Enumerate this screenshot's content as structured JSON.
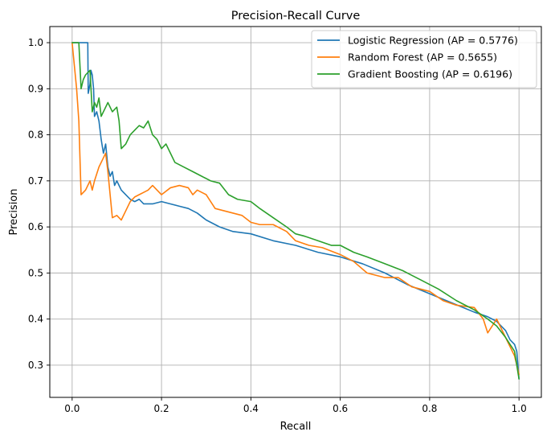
{
  "chart_data": {
    "type": "line",
    "title": "Precision-Recall Curve",
    "xlabel": "Recall",
    "ylabel": "Precision",
    "xlim": [
      -0.05,
      1.05
    ],
    "ylim": [
      0.23,
      1.035
    ],
    "xticks": [
      0.0,
      0.2,
      0.4,
      0.6,
      0.8,
      1.0
    ],
    "xtick_labels": [
      "0.0",
      "0.2",
      "0.4",
      "0.6",
      "0.8",
      "1.0"
    ],
    "yticks": [
      0.3,
      0.4,
      0.5,
      0.6,
      0.7,
      0.8,
      0.9,
      1.0
    ],
    "ytick_labels": [
      "0.3",
      "0.4",
      "0.5",
      "0.6",
      "0.7",
      "0.8",
      "0.9",
      "1.0"
    ],
    "grid": true,
    "legend_position": "top-right",
    "series": [
      {
        "name": "Logistic Regression (AP = 0.5776)",
        "color": "#1f77b4",
        "x": [
          0.0,
          0.02,
          0.035,
          0.036,
          0.04,
          0.042,
          0.045,
          0.048,
          0.05,
          0.055,
          0.06,
          0.065,
          0.07,
          0.075,
          0.08,
          0.085,
          0.09,
          0.095,
          0.1,
          0.11,
          0.12,
          0.13,
          0.14,
          0.15,
          0.16,
          0.18,
          0.2,
          0.22,
          0.24,
          0.26,
          0.28,
          0.3,
          0.33,
          0.36,
          0.4,
          0.45,
          0.5,
          0.55,
          0.6,
          0.65,
          0.7,
          0.75,
          0.8,
          0.85,
          0.9,
          0.93,
          0.95,
          0.97,
          0.98,
          0.99,
          0.995,
          1.0
        ],
        "y": [
          1.0,
          1.0,
          1.0,
          0.89,
          0.91,
          0.94,
          0.93,
          0.9,
          0.84,
          0.85,
          0.83,
          0.79,
          0.76,
          0.78,
          0.73,
          0.71,
          0.72,
          0.69,
          0.7,
          0.68,
          0.67,
          0.66,
          0.655,
          0.66,
          0.65,
          0.65,
          0.655,
          0.65,
          0.645,
          0.64,
          0.63,
          0.615,
          0.6,
          0.59,
          0.585,
          0.57,
          0.56,
          0.545,
          0.535,
          0.52,
          0.5,
          0.475,
          0.455,
          0.435,
          0.415,
          0.405,
          0.395,
          0.375,
          0.355,
          0.345,
          0.33,
          0.27
        ]
      },
      {
        "name": "Random Forest (AP = 0.5655)",
        "color": "#ff7f0e",
        "x": [
          0.0,
          0.005,
          0.01,
          0.015,
          0.02,
          0.03,
          0.04,
          0.045,
          0.05,
          0.06,
          0.07,
          0.075,
          0.08,
          0.09,
          0.1,
          0.11,
          0.12,
          0.13,
          0.14,
          0.15,
          0.16,
          0.17,
          0.18,
          0.2,
          0.22,
          0.24,
          0.26,
          0.27,
          0.28,
          0.3,
          0.32,
          0.34,
          0.36,
          0.38,
          0.4,
          0.42,
          0.45,
          0.48,
          0.5,
          0.53,
          0.56,
          0.6,
          0.63,
          0.66,
          0.7,
          0.73,
          0.76,
          0.8,
          0.83,
          0.86,
          0.9,
          0.92,
          0.93,
          0.95,
          0.96,
          0.98,
          0.99,
          1.0
        ],
        "y": [
          1.0,
          0.95,
          0.9,
          0.83,
          0.67,
          0.68,
          0.7,
          0.68,
          0.7,
          0.73,
          0.75,
          0.76,
          0.72,
          0.62,
          0.625,
          0.615,
          0.635,
          0.655,
          0.665,
          0.67,
          0.675,
          0.68,
          0.69,
          0.67,
          0.685,
          0.69,
          0.685,
          0.67,
          0.68,
          0.67,
          0.64,
          0.635,
          0.63,
          0.625,
          0.61,
          0.605,
          0.605,
          0.59,
          0.57,
          0.56,
          0.555,
          0.54,
          0.525,
          0.5,
          0.49,
          0.49,
          0.47,
          0.46,
          0.44,
          0.43,
          0.425,
          0.4,
          0.37,
          0.4,
          0.38,
          0.34,
          0.32,
          0.28
        ]
      },
      {
        "name": "Gradient Boosting (AP = 0.6196)",
        "color": "#2ca02c",
        "x": [
          0.0,
          0.015,
          0.02,
          0.025,
          0.03,
          0.04,
          0.045,
          0.05,
          0.055,
          0.06,
          0.065,
          0.07,
          0.08,
          0.09,
          0.1,
          0.105,
          0.11,
          0.12,
          0.13,
          0.14,
          0.15,
          0.16,
          0.17,
          0.18,
          0.19,
          0.2,
          0.21,
          0.22,
          0.23,
          0.25,
          0.27,
          0.29,
          0.31,
          0.33,
          0.35,
          0.37,
          0.4,
          0.42,
          0.45,
          0.48,
          0.5,
          0.52,
          0.55,
          0.58,
          0.6,
          0.63,
          0.66,
          0.7,
          0.74,
          0.78,
          0.82,
          0.86,
          0.9,
          0.93,
          0.95,
          0.97,
          0.98,
          0.99,
          1.0
        ],
        "y": [
          1.0,
          1.0,
          0.9,
          0.92,
          0.93,
          0.94,
          0.85,
          0.87,
          0.86,
          0.88,
          0.84,
          0.85,
          0.87,
          0.85,
          0.86,
          0.83,
          0.77,
          0.78,
          0.8,
          0.81,
          0.82,
          0.815,
          0.83,
          0.8,
          0.79,
          0.77,
          0.78,
          0.76,
          0.74,
          0.73,
          0.72,
          0.71,
          0.7,
          0.695,
          0.67,
          0.66,
          0.655,
          0.64,
          0.62,
          0.6,
          0.585,
          0.58,
          0.57,
          0.56,
          0.56,
          0.545,
          0.535,
          0.52,
          0.505,
          0.485,
          0.465,
          0.44,
          0.42,
          0.4,
          0.385,
          0.36,
          0.345,
          0.33,
          0.27
        ]
      }
    ]
  }
}
